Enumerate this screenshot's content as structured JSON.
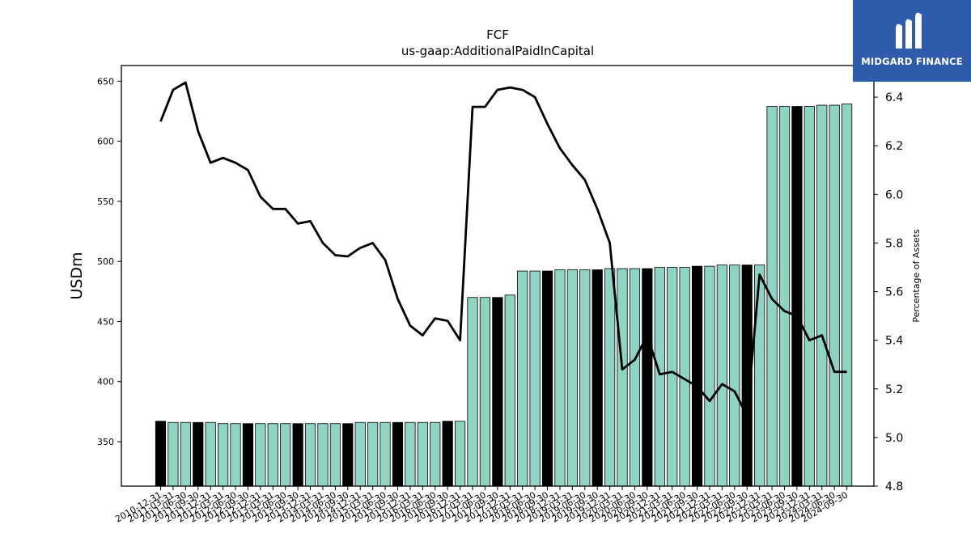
{
  "logo": {
    "text": "MIDGARD FINANCE"
  },
  "chart_data": {
    "type": "bar",
    "title": "FCF",
    "subtitle": "us-gaap:AdditionalPaidInCapital",
    "ylabel": "USDm",
    "y2label": "Percentage of Assets",
    "ylim": [
      313,
      663
    ],
    "y2lim": [
      4.8,
      6.53
    ],
    "yticks": [
      350,
      400,
      450,
      500,
      550,
      600,
      650
    ],
    "y2ticks": [
      4.8,
      5.0,
      5.2,
      5.4,
      5.6,
      5.8,
      6.0,
      6.2,
      6.4
    ],
    "colors": {
      "bar": "#8fd3c5",
      "bar_highlight": "#000000",
      "line": "#000000"
    },
    "categories": [
      "2010-12-31",
      "2011-03-31",
      "2011-06-30",
      "2011-09-30",
      "2011-12-31",
      "2012-03-31",
      "2012-06-30",
      "2012-09-30",
      "2012-12-31",
      "2013-03-31",
      "2013-06-30",
      "2013-09-30",
      "2013-12-31",
      "2014-03-31",
      "2014-06-30",
      "2014-09-30",
      "2014-12-31",
      "2015-03-31",
      "2015-06-30",
      "2015-09-30",
      "2015-12-31",
      "2016-03-31",
      "2016-06-30",
      "2016-09-30",
      "2016-12-31",
      "2017-03-31",
      "2017-06-30",
      "2017-09-30",
      "2017-12-31",
      "2018-03-31",
      "2018-06-30",
      "2018-09-30",
      "2018-12-31",
      "2019-03-31",
      "2019-06-30",
      "2019-09-30",
      "2019-12-31",
      "2020-03-31",
      "2020-06-30",
      "2020-09-30",
      "2020-12-31",
      "2021-03-31",
      "2021-06-30",
      "2021-09-30",
      "2021-12-31",
      "2022-03-31",
      "2022-06-30",
      "2022-09-30",
      "2022-12-31",
      "2023-03-31",
      "2023-06-30",
      "2023-09-30",
      "2023-12-31",
      "2024-03-31",
      "2024-06-30",
      "2024-09-30"
    ],
    "highlight": [
      true,
      false,
      false,
      true,
      false,
      false,
      false,
      true,
      false,
      false,
      false,
      true,
      false,
      false,
      false,
      true,
      false,
      false,
      false,
      true,
      false,
      false,
      false,
      true,
      false,
      false,
      false,
      true,
      false,
      false,
      false,
      true,
      false,
      false,
      false,
      true,
      false,
      false,
      false,
      true,
      false,
      false,
      false,
      true,
      false,
      false,
      false,
      true,
      false,
      false,
      false,
      true,
      false,
      false,
      false,
      false
    ],
    "series": [
      {
        "type": "bar",
        "values": [
          367,
          366,
          366,
          366,
          366,
          365,
          365,
          365,
          365,
          365,
          365,
          365,
          365,
          365,
          365,
          365,
          366,
          366,
          366,
          366,
          366,
          366,
          366,
          367,
          367,
          470,
          470,
          470,
          472,
          492,
          492,
          492,
          493,
          493,
          493,
          493,
          494,
          494,
          494,
          494,
          495,
          495,
          495,
          496,
          496,
          497,
          497,
          497,
          497,
          629,
          629,
          629,
          629,
          630,
          630,
          631
        ]
      },
      {
        "type": "line",
        "axis": "right",
        "values": [
          6.3,
          6.43,
          6.46,
          6.26,
          6.13,
          6.15,
          6.13,
          6.1,
          5.99,
          5.94,
          5.94,
          5.88,
          5.89,
          5.8,
          5.75,
          5.745,
          5.78,
          5.8,
          5.73,
          5.57,
          5.46,
          5.42,
          5.49,
          5.48,
          5.4,
          6.36,
          6.36,
          6.43,
          6.44,
          6.43,
          6.4,
          6.29,
          6.19,
          6.12,
          6.06,
          5.94,
          5.8,
          5.28,
          5.32,
          5.42,
          5.26,
          5.27,
          5.24,
          5.21,
          5.15,
          5.22,
          5.19,
          5.09,
          5.67,
          5.57,
          5.52,
          5.5,
          5.4,
          5.42,
          5.27,
          5.27
        ]
      }
    ]
  }
}
